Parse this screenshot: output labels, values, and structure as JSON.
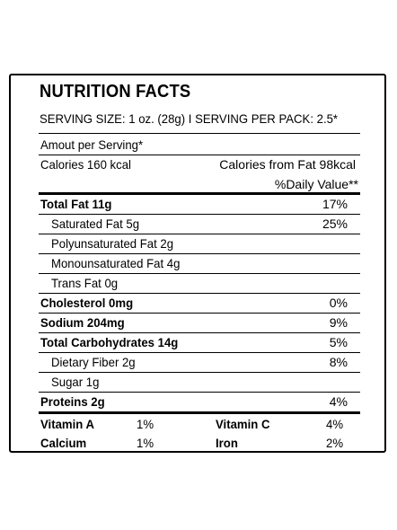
{
  "label": {
    "title": "NUTRITION FACTS",
    "serving": "SERVING SIZE: 1 oz. (28g) I SERVING PER PACK: 2.5*",
    "amount_per_serving": "Amout per Serving*",
    "calories": "Calories 160 kcal",
    "calories_from_fat": "Calories from Fat 98kcal",
    "daily_value_header": "%Daily Value**",
    "rows": [
      {
        "label": "Total Fat 11g",
        "value": "17%"
      },
      {
        "label": "Saturated Fat 5g",
        "value": "25%"
      },
      {
        "label": "Polyunsaturated Fat 2g",
        "value": ""
      },
      {
        "label": "Monounsaturated Fat 4g",
        "value": ""
      },
      {
        "label": "Trans Fat 0g",
        "value": ""
      },
      {
        "label": "Cholesterol 0mg",
        "value": "0%"
      },
      {
        "label": "Sodium 204mg",
        "value": "9%"
      },
      {
        "label": "Total Carbohydrates 14g",
        "value": "5%"
      },
      {
        "label": "Dietary Fiber 2g",
        "value": "8%"
      },
      {
        "label": "Sugar 1g",
        "value": ""
      },
      {
        "label": "Proteins 2g",
        "value": "4%"
      }
    ],
    "vitamins": {
      "vitamin_a": {
        "label": "Vitamin A",
        "value": "1%"
      },
      "vitamin_c": {
        "label": "Vitamin C",
        "value": "4%"
      },
      "calcium": {
        "label": "Calcium",
        "value": "1%"
      },
      "iron": {
        "label": "Iron",
        "value": "2%"
      }
    }
  }
}
